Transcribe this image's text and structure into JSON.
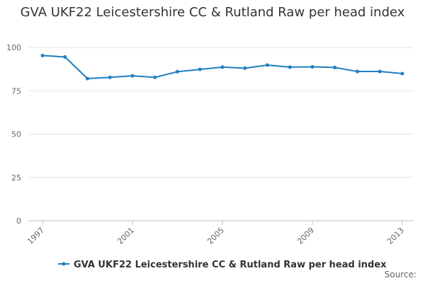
{
  "chart_data": {
    "type": "line",
    "title": "GVA UKF22 Leicestershire CC & Rutland Raw per head index",
    "xlabel": "",
    "ylabel": "",
    "x": [
      1997,
      1998,
      1999,
      2000,
      2001,
      2002,
      2003,
      2004,
      2005,
      2006,
      2007,
      2008,
      2009,
      2010,
      2011,
      2012,
      2013
    ],
    "x_tick_labels": [
      "1997",
      "2001",
      "2005",
      "2009",
      "2013"
    ],
    "x_tick_values": [
      1997,
      2001,
      2005,
      2009,
      2013
    ],
    "y_tick_labels": [
      "0",
      "25",
      "50",
      "75",
      "100"
    ],
    "y_tick_values": [
      0,
      25,
      50,
      75,
      100
    ],
    "ylim": [
      0,
      100
    ],
    "xlim": [
      1997,
      2013
    ],
    "grid": true,
    "legend_position": "bottom",
    "series": [
      {
        "name": "GVA UKF22 Leicestershire CC & Rutland Raw per head index",
        "color": "#1f7fc0",
        "values": [
          95.3,
          94.5,
          82.0,
          82.7,
          83.6,
          82.7,
          86.0,
          87.3,
          88.6,
          88.0,
          89.8,
          88.6,
          88.8,
          88.4,
          86.1,
          86.1,
          84.9
        ]
      }
    ]
  },
  "footer": {
    "source_label": "Source:"
  }
}
